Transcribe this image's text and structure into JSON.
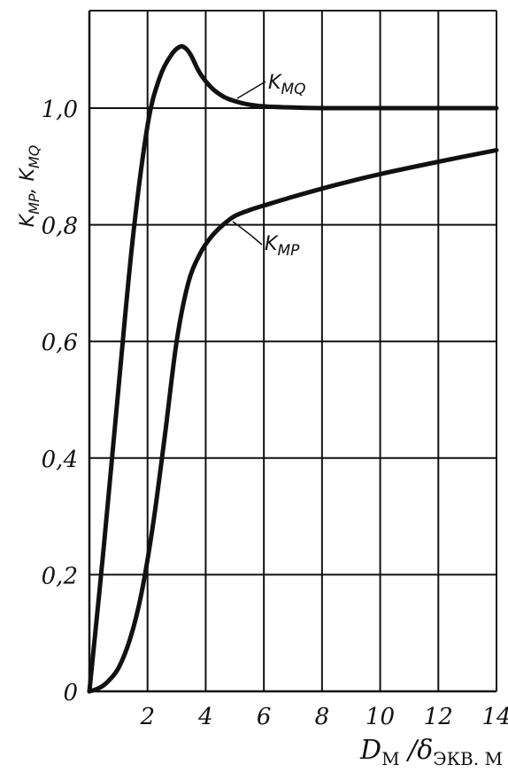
{
  "chart_data": {
    "type": "line",
    "ylabel": "K_MP, K_MQ",
    "xlabel": "D_M / δ_экв. м",
    "xlim": [
      0,
      14
    ],
    "ylim": [
      0,
      1.1
    ],
    "x_ticks": [
      0,
      2,
      4,
      6,
      8,
      10,
      12,
      14
    ],
    "x_tick_labels": [
      "",
      "2",
      "4",
      "6",
      "8",
      "10",
      "12",
      "14"
    ],
    "y_ticks": [
      0,
      0.2,
      0.4,
      0.6,
      0.8,
      1.0
    ],
    "y_tick_labels": [
      "0",
      "0,2",
      "0,4",
      "0,6",
      "0,8",
      "1,0"
    ],
    "grid": true,
    "series": [
      {
        "name": "K_MQ",
        "x": [
          0,
          0.5,
          1,
          1.5,
          2,
          2.4,
          2.8,
          3.1,
          3.3,
          3.5,
          3.8,
          4.2,
          4.6,
          5,
          5.5,
          6,
          7,
          8,
          9,
          10,
          12,
          14
        ],
        "y": [
          0,
          0.25,
          0.52,
          0.78,
          0.97,
          1.05,
          1.09,
          1.105,
          1.103,
          1.09,
          1.06,
          1.035,
          1.02,
          1.012,
          1.006,
          1.003,
          1.001,
          1.0,
          1.0,
          1.0,
          1.0,
          1.0
        ]
      },
      {
        "name": "K_MP",
        "x": [
          0,
          0.3,
          0.6,
          1,
          1.4,
          1.8,
          2.2,
          2.6,
          3,
          3.4,
          3.8,
          4.2,
          4.6,
          5,
          5.5,
          6,
          7,
          8,
          9,
          10,
          12,
          14
        ],
        "y": [
          0,
          0.005,
          0.015,
          0.04,
          0.09,
          0.17,
          0.29,
          0.44,
          0.6,
          0.7,
          0.75,
          0.78,
          0.8,
          0.815,
          0.825,
          0.833,
          0.848,
          0.862,
          0.875,
          0.887,
          0.908,
          0.928
        ]
      }
    ],
    "annotations": [
      "K_MQ",
      "K_MP"
    ]
  }
}
